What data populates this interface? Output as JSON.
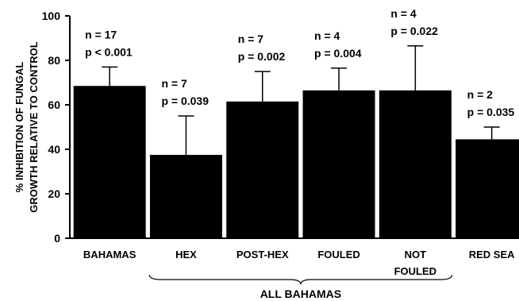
{
  "chart_data": {
    "type": "bar",
    "ylabel_lines": [
      "% INHIBITION OF FUNGAL",
      "GROWTH RELATIVE TO CONTROL"
    ],
    "ylim": [
      0,
      100
    ],
    "yticks": [
      0,
      20,
      40,
      60,
      80,
      100
    ],
    "categories": [
      {
        "label_lines": [
          "BAHAMAS"
        ],
        "value": 68.5,
        "error": 8.5,
        "n": "n = 17",
        "p": "p < 0.001"
      },
      {
        "label_lines": [
          "HEX"
        ],
        "value": 37.5,
        "error": 17.5,
        "n": "n = 7",
        "p": "p = 0.039"
      },
      {
        "label_lines": [
          "POST-HEX"
        ],
        "value": 61.5,
        "error": 13.5,
        "n": "n = 7",
        "p": "p = 0.002"
      },
      {
        "label_lines": [
          "FOULED"
        ],
        "value": 66.5,
        "error": 10,
        "n": "n = 4",
        "p": "p = 0.004"
      },
      {
        "label_lines": [
          "NOT",
          "FOULED"
        ],
        "value": 66.5,
        "error": 20,
        "n": "n = 4",
        "p": "p = 0.022"
      },
      {
        "label_lines": [
          "RED SEA"
        ],
        "value": 44.5,
        "error": 5.5,
        "n": "n = 2",
        "p": "p = 0.035"
      }
    ],
    "group_bracket": {
      "label": "ALL BAHAMAS",
      "covers": [
        "HEX",
        "POST-HEX",
        "FOULED",
        "NOT FOULED"
      ]
    },
    "bar_color": "#000000",
    "grid": false,
    "legend": "none"
  }
}
